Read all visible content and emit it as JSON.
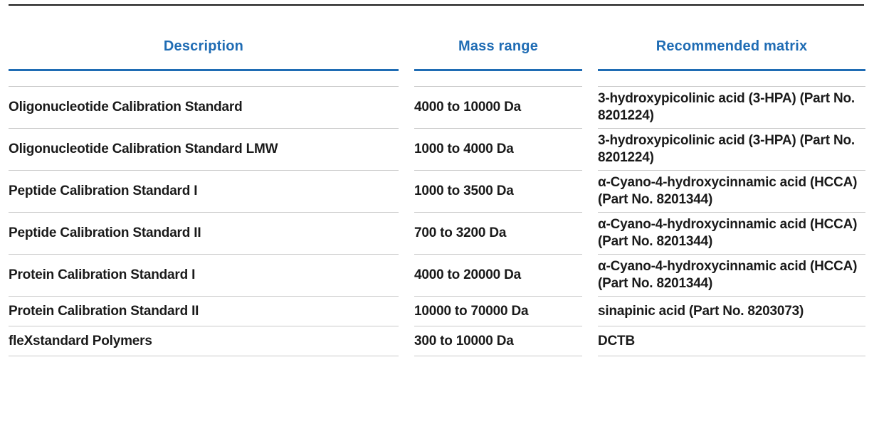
{
  "table": {
    "headers": [
      "Description",
      "Mass range",
      "Recommended matrix"
    ],
    "rows": [
      {
        "description": "Oligonucleotide Calibration Standard",
        "mass_range": "4000 to 10000 Da",
        "matrix": "3-hydroxypicolinic acid (3-HPA) (Part No. 8201224)"
      },
      {
        "description": "Oligonucleotide Calibration Standard LMW",
        "mass_range": "1000 to 4000 Da",
        "matrix": "3-hydroxypicolinic acid (3-HPA) (Part No. 8201224)"
      },
      {
        "description": "Peptide Calibration Standard I",
        "mass_range": "1000 to 3500 Da",
        "matrix": "α-Cyano-4-hydroxycinnamic acid (HCCA) (Part No. 8201344)"
      },
      {
        "description": "Peptide Calibration Standard II",
        "mass_range": "700 to 3200 Da",
        "matrix": "α-Cyano-4-hydroxycinnamic acid (HCCA) (Part No. 8201344)"
      },
      {
        "description": "Protein Calibration Standard I",
        "mass_range": "4000 to 20000 Da",
        "matrix": "α-Cyano-4-hydroxycinnamic acid (HCCA) (Part No. 8201344)"
      },
      {
        "description": "Protein Calibration Standard II",
        "mass_range": "10000 to 70000 Da",
        "matrix": "sinapinic acid (Part No. 8203073)"
      },
      {
        "description": "fleXstandard Polymers",
        "mass_range": "300 to 10000 Da",
        "matrix": "DCTB"
      }
    ]
  },
  "colors": {
    "accent_blue": "#1f6cb4",
    "divider_gray": "#c9c9c9",
    "text": "#1a1a1a",
    "top_rule": "#1a1a1a"
  }
}
